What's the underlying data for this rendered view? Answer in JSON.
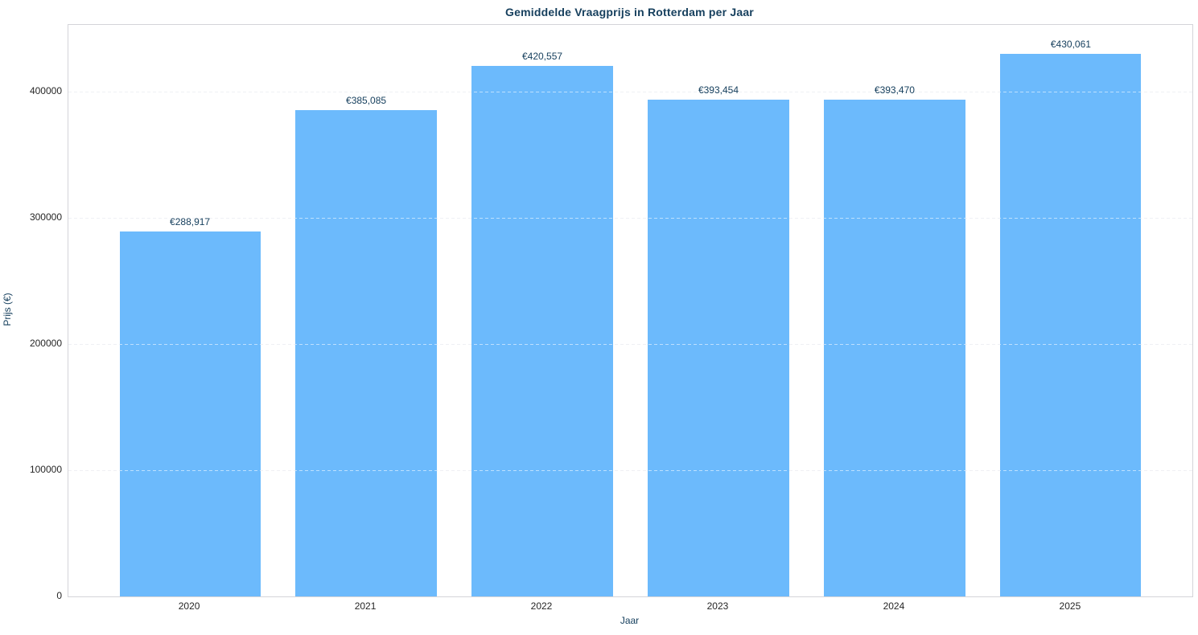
{
  "chart_data": {
    "type": "bar",
    "title": "Gemiddelde Vraagprijs in Rotterdam per Jaar",
    "xlabel": "Jaar",
    "ylabel": "Prijs (€)",
    "categories": [
      "2020",
      "2021",
      "2022",
      "2023",
      "2024",
      "2025"
    ],
    "values": [
      288917,
      385085,
      420557,
      393454,
      393470,
      430061
    ],
    "bar_labels": [
      "€288,917",
      "€385,085",
      "€420,557",
      "€393,454",
      "€393,470",
      "€430,061"
    ],
    "yticks": [
      0,
      100000,
      200000,
      300000,
      400000
    ],
    "ytick_labels": [
      "0",
      "100000",
      "200000",
      "300000",
      "400000"
    ],
    "ylim": [
      0,
      452900
    ],
    "grid": "horizontal-dashed",
    "legend": "none",
    "colors": {
      "bar": "#6cbafc",
      "title": "#17405e",
      "bar_label": "#17405e",
      "axis_label": "#17405e",
      "tick_label": "#262626",
      "gridline": "#dcdde6",
      "spine": "#d4d4d9",
      "background": "#ffffff"
    }
  }
}
